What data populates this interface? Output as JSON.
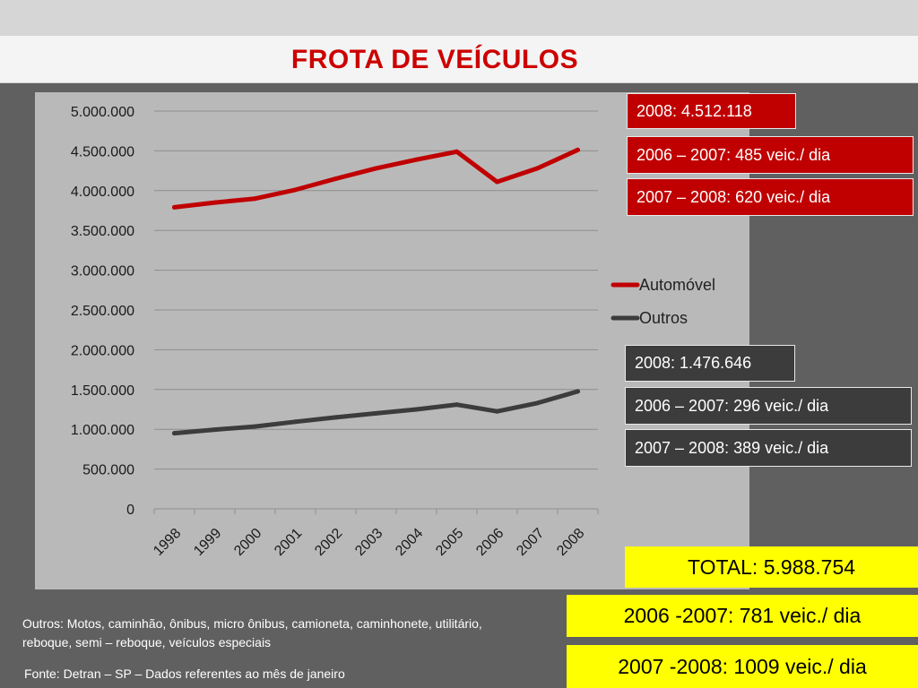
{
  "slide": {
    "title": "FROTA DE VEÍCULOS",
    "note": "Outros: Motos, caminhão, ônibus, micro ônibus, camioneta, caminhonete, utilitário, reboque, semi – reboque, veículos especiais",
    "source": "Fonte: Detran – SP – Dados referentes ao mês de janeiro"
  },
  "callouts": {
    "auto_total": "2008: 4.512.118",
    "auto_rate_0607": "2006 – 2007: 485 veic./ dia",
    "auto_rate_0708": "2007 – 2008:  620 veic./ dia",
    "outros_total": "2008: 1.476.646",
    "outros_rate_0607": "2006 – 2007: 296 veic./ dia",
    "outros_rate_0708": "2007 – 2008: 389 veic./ dia",
    "grand_total": "TOTAL:  5.988.754",
    "total_rate_0607": "2006 -2007: 781 veic./ dia",
    "total_rate_0708": "2007 -2008: 1009 veic./ dia"
  },
  "colors": {
    "automovel": "#c00000",
    "outros": "#3c3c3c",
    "highlight": "#ffff00"
  },
  "chart_data": {
    "type": "line",
    "categories": [
      "1998",
      "1999",
      "2000",
      "2001",
      "2002",
      "2003",
      "2004",
      "2005",
      "2006",
      "2007",
      "2008"
    ],
    "series": [
      {
        "name": "Automóvel",
        "values": [
          3790000,
          3850000,
          3900000,
          4010000,
          4150000,
          4280000,
          4390000,
          4490000,
          4110000,
          4280000,
          4512118
        ]
      },
      {
        "name": "Outros",
        "values": [
          950000,
          995000,
          1035000,
          1095000,
          1150000,
          1200000,
          1250000,
          1310000,
          1225000,
          1330000,
          1476646
        ]
      }
    ],
    "yticks": [
      "0",
      "500.000",
      "1.000.000",
      "1.500.000",
      "2.000.000",
      "2.500.000",
      "3.000.000",
      "3.500.000",
      "4.000.000",
      "4.500.000",
      "5.000.000"
    ],
    "ylim": [
      0,
      5000000
    ],
    "grid": true,
    "legend": "right"
  }
}
